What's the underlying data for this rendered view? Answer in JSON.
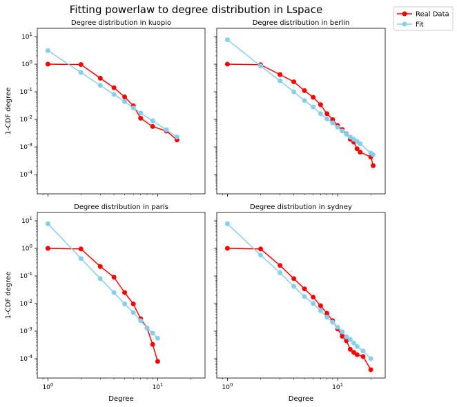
{
  "figure": {
    "title": "Fitting powerlaw to degree distribution in Lspace"
  },
  "legend": {
    "placement": "top-right outside",
    "items": [
      {
        "label": "Real Data",
        "color": "#ff0000",
        "marker": "circle"
      },
      {
        "label": "Fit",
        "color": "#87ceeb",
        "marker": "circle"
      }
    ]
  },
  "colors": {
    "real": "#ff0000",
    "fit": "#87ceeb"
  },
  "chart_data": [
    {
      "type": "line",
      "title": "Degree distribution in kuopio",
      "xlabel": "",
      "ylabel": "1-CDF degree",
      "xscale": "log",
      "yscale": "log",
      "xlim": [
        0.8,
        27
      ],
      "ylim": [
        2e-05,
        20
      ],
      "x_ticks": [
        {
          "value": 1,
          "label": "10^0"
        },
        {
          "value": 10,
          "label": "10^1"
        }
      ],
      "x_tick_labels_visible": false,
      "y_ticks": [
        {
          "value": 10,
          "label": "10^1"
        },
        {
          "value": 1,
          "label": "10^0"
        },
        {
          "value": 0.1,
          "label": "10^-1"
        },
        {
          "value": 0.01,
          "label": "10^-2"
        },
        {
          "value": 0.001,
          "label": "10^-3"
        },
        {
          "value": 0.0001,
          "label": "10^-4"
        }
      ],
      "y_tick_labels_visible": true,
      "series": [
        {
          "name": "Real Data",
          "x": [
            1,
            2,
            3,
            4,
            5,
            6,
            7,
            9,
            12,
            15
          ],
          "y": [
            1.0,
            0.97,
            0.31,
            0.14,
            0.065,
            0.031,
            0.011,
            0.0055,
            0.0038,
            0.0018
          ]
        },
        {
          "name": "Fit",
          "x": [
            1,
            2,
            3,
            4,
            5,
            6,
            7,
            9,
            12,
            15
          ],
          "y": [
            3.1,
            0.5,
            0.17,
            0.08,
            0.044,
            0.026,
            0.017,
            0.0088,
            0.0042,
            0.0023
          ]
        }
      ]
    },
    {
      "type": "line",
      "title": "Degree distribution in berlin",
      "xlabel": "",
      "ylabel": "",
      "xscale": "log",
      "yscale": "log",
      "xlim": [
        0.8,
        27
      ],
      "ylim": [
        2e-05,
        20
      ],
      "x_ticks": [
        {
          "value": 1,
          "label": "10^0"
        },
        {
          "value": 10,
          "label": "10^1"
        }
      ],
      "x_tick_labels_visible": false,
      "y_ticks": [
        {
          "value": 10,
          "label": "10^1"
        },
        {
          "value": 1,
          "label": "10^0"
        },
        {
          "value": 0.1,
          "label": "10^-1"
        },
        {
          "value": 0.01,
          "label": "10^-2"
        },
        {
          "value": 0.001,
          "label": "10^-3"
        },
        {
          "value": 0.0001,
          "label": "10^-4"
        }
      ],
      "y_tick_labels_visible": false,
      "series": [
        {
          "name": "Real Data",
          "x": [
            1,
            2,
            3,
            4,
            5,
            6,
            7,
            8,
            9,
            10,
            11,
            12,
            13,
            14,
            15,
            16,
            20,
            21
          ],
          "y": [
            1.0,
            0.95,
            0.42,
            0.23,
            0.11,
            0.063,
            0.034,
            0.016,
            0.0098,
            0.006,
            0.0043,
            0.003,
            0.0019,
            0.0015,
            0.00086,
            0.00065,
            0.00043,
            0.00021
          ]
        },
        {
          "name": "Fit",
          "x": [
            1,
            2,
            3,
            4,
            5,
            6,
            7,
            8,
            9,
            10,
            11,
            12,
            13,
            14,
            15,
            16,
            20,
            21
          ],
          "y": [
            7.7,
            0.86,
            0.25,
            0.1,
            0.048,
            0.028,
            0.016,
            0.0104,
            0.0075,
            0.0052,
            0.0038,
            0.0029,
            0.0023,
            0.0019,
            0.0016,
            0.0013,
            0.0006,
            0.00052
          ]
        }
      ]
    },
    {
      "type": "line",
      "title": "Degree distribution in paris",
      "xlabel": "Degree",
      "ylabel": "1-CDF degree",
      "xscale": "log",
      "yscale": "log",
      "xlim": [
        0.8,
        27
      ],
      "ylim": [
        2e-05,
        20
      ],
      "x_ticks": [
        {
          "value": 1,
          "label": "10^0"
        },
        {
          "value": 10,
          "label": "10^1"
        }
      ],
      "x_tick_labels_visible": true,
      "y_ticks": [
        {
          "value": 10,
          "label": "10^1"
        },
        {
          "value": 1,
          "label": "10^0"
        },
        {
          "value": 0.1,
          "label": "10^-1"
        },
        {
          "value": 0.01,
          "label": "10^-2"
        },
        {
          "value": 0.001,
          "label": "10^-3"
        },
        {
          "value": 0.0001,
          "label": "10^-4"
        }
      ],
      "y_tick_labels_visible": true,
      "series": [
        {
          "name": "Real Data",
          "x": [
            1,
            2,
            3,
            4,
            5,
            6,
            7,
            8,
            9,
            10
          ],
          "y": [
            1.0,
            0.95,
            0.22,
            0.09,
            0.025,
            0.0097,
            0.0028,
            0.0013,
            0.00033,
            8e-05
          ]
        },
        {
          "name": "Fit",
          "x": [
            1,
            2,
            3,
            4,
            5,
            6,
            7,
            8,
            9,
            10
          ],
          "y": [
            7.8,
            0.43,
            0.08,
            0.025,
            0.0097,
            0.0047,
            0.0024,
            0.0013,
            0.00085,
            0.00055
          ]
        }
      ]
    },
    {
      "type": "line",
      "title": "Degree distribution in sydney",
      "xlabel": "Degree",
      "ylabel": "",
      "xscale": "log",
      "yscale": "log",
      "xlim": [
        0.8,
        27
      ],
      "ylim": [
        2e-05,
        20
      ],
      "x_ticks": [
        {
          "value": 1,
          "label": "10^0"
        },
        {
          "value": 10,
          "label": "10^1"
        }
      ],
      "x_tick_labels_visible": true,
      "y_ticks": [
        {
          "value": 10,
          "label": "10^1"
        },
        {
          "value": 1,
          "label": "10^0"
        },
        {
          "value": 0.1,
          "label": "10^-1"
        },
        {
          "value": 0.01,
          "label": "10^-2"
        },
        {
          "value": 0.001,
          "label": "10^-3"
        },
        {
          "value": 0.0001,
          "label": "10^-4"
        }
      ],
      "y_tick_labels_visible": false,
      "series": [
        {
          "name": "Real Data",
          "x": [
            1,
            2,
            3,
            4,
            5,
            6,
            7,
            8,
            9,
            10,
            11,
            12,
            13,
            14,
            15,
            17,
            20
          ],
          "y": [
            1.0,
            0.95,
            0.24,
            0.08,
            0.034,
            0.017,
            0.0083,
            0.0044,
            0.0024,
            0.0012,
            0.00065,
            0.00045,
            0.00022,
            0.00017,
            0.00014,
            0.00012,
            4e-05
          ]
        },
        {
          "name": "Fit",
          "x": [
            1,
            2,
            3,
            4,
            5,
            6,
            7,
            8,
            9,
            10,
            11,
            12,
            13,
            14,
            15,
            17,
            20
          ],
          "y": [
            7.8,
            0.57,
            0.13,
            0.042,
            0.018,
            0.01,
            0.0055,
            0.0032,
            0.0021,
            0.0014,
            0.00095,
            0.00062,
            0.0005,
            0.00037,
            0.00028,
            0.00019,
            0.0001
          ]
        }
      ]
    }
  ]
}
